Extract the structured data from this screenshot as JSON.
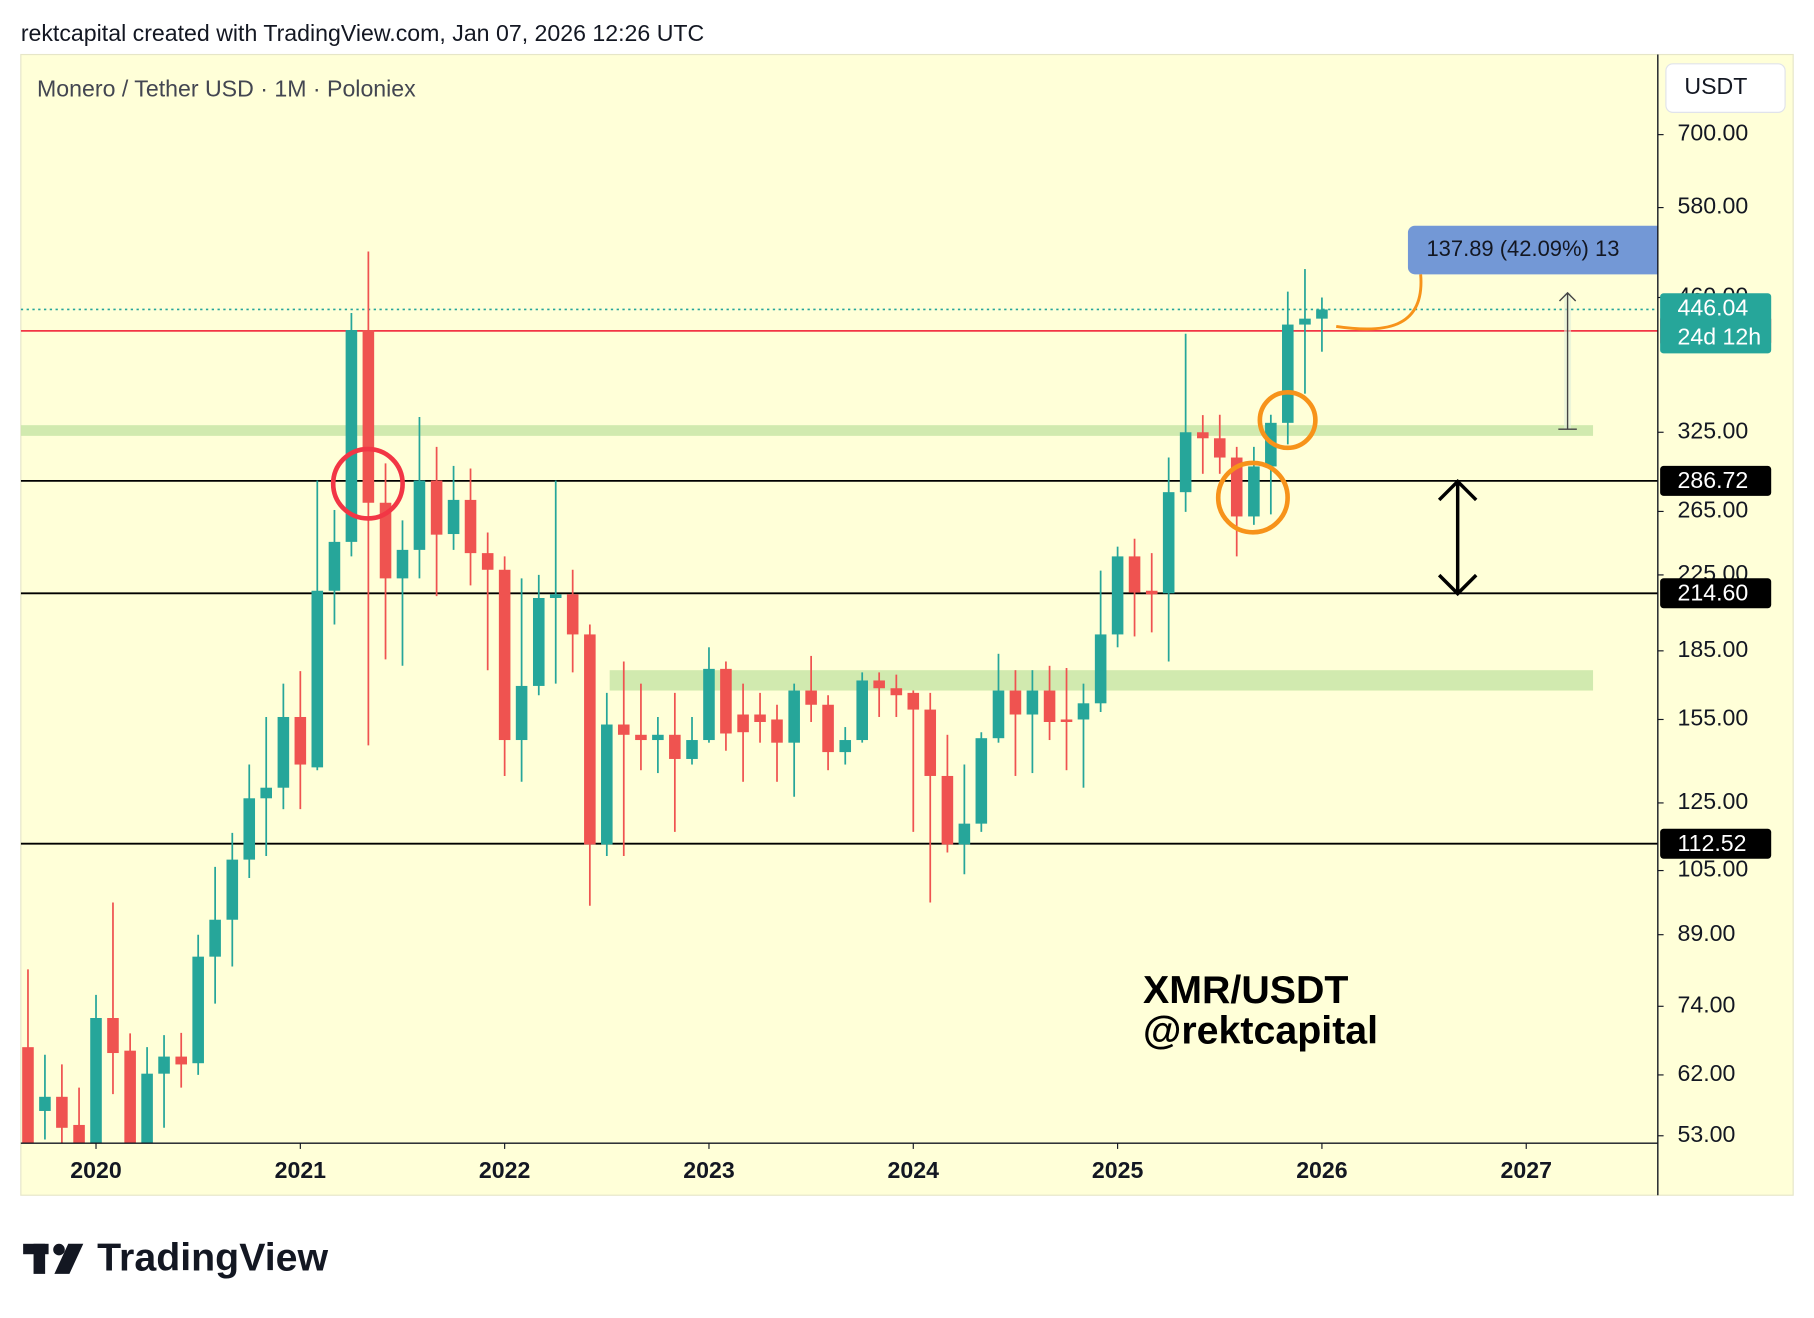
{
  "header": "rektcapital created with TradingView.com, Jan 07, 2026 12:26 UTC",
  "currency_button": "USDT",
  "watermark": [
    "XMR/USDT",
    "@rektcapital"
  ],
  "footer_brand": "TradingView",
  "chart_data": {
    "type": "candlestick",
    "title": "Monero / Tether USD · 1M · Poloniex",
    "log_scale": true,
    "up_color": "#26a69a",
    "down_color": "#ef5350",
    "x": [
      2019.667,
      2019.75,
      2019.833,
      2019.917,
      2020,
      2020.083,
      2020.167,
      2020.25,
      2020.333,
      2020.417,
      2020.5,
      2020.583,
      2020.667,
      2020.75,
      2020.833,
      2020.917,
      2021,
      2021.083,
      2021.167,
      2021.25,
      2021.333,
      2021.417,
      2021.5,
      2021.583,
      2021.667,
      2021.75,
      2021.833,
      2021.917,
      2022,
      2022.083,
      2022.167,
      2022.25,
      2022.333,
      2022.417,
      2022.5,
      2022.583,
      2022.667,
      2022.75,
      2022.833,
      2022.917,
      2023,
      2023.083,
      2023.167,
      2023.25,
      2023.333,
      2023.417,
      2023.5,
      2023.583,
      2023.667,
      2023.75,
      2023.833,
      2023.917,
      2024,
      2024.083,
      2024.167,
      2024.25,
      2024.333,
      2024.417,
      2024.5,
      2024.583,
      2024.667,
      2024.75,
      2024.833,
      2024.917,
      2025,
      2025.083,
      2025.167,
      2025.25,
      2025.333,
      2025.417,
      2025.5,
      2025.583,
      2025.667,
      2025.75,
      2025.833,
      2025.917,
      2026
    ],
    "open": [
      66.6,
      56.5,
      58.6,
      54.5,
      48,
      71.8,
      66,
      47,
      62.2,
      65,
      63.9,
      84.1,
      92.5,
      108,
      126.5,
      130,
      156,
      137,
      216,
      245,
      423,
      271,
      223,
      240,
      287,
      250,
      273,
      238,
      228,
      147,
      169,
      212,
      214,
      193,
      112.3,
      153,
      149,
      147,
      149,
      140,
      147,
      176.6,
      157,
      157,
      155,
      146,
      167,
      161,
      142.5,
      147,
      171.4,
      168,
      166,
      159,
      134,
      112.3,
      118.5,
      147.7,
      167,
      157,
      167,
      155,
      155,
      161.6,
      193,
      236,
      216,
      214.6,
      278.5,
      325,
      320,
      304.5,
      261.6,
      297.6,
      333,
      429,
      435.6
    ],
    "high": [
      81.4,
      65.3,
      63.7,
      60,
      76.2,
      96.7,
      69,
      66.6,
      68.7,
      69.1,
      89,
      106,
      115.7,
      138,
      156,
      170,
      175.6,
      287,
      266,
      442,
      518,
      300,
      259,
      338,
      313,
      298,
      296,
      251,
      236,
      223,
      225,
      287,
      228,
      198,
      166,
      180,
      170,
      156,
      166,
      156,
      186.7,
      180,
      170,
      166,
      161,
      170,
      182.6,
      165,
      152,
      175,
      175,
      174,
      167,
      166,
      149,
      138,
      150,
      183.6,
      176,
      176,
      178,
      177,
      170,
      227.5,
      242,
      247,
      238,
      304.5,
      419,
      339.7,
      340,
      313,
      313,
      340,
      467,
      495,
      460
    ],
    "low": [
      45,
      52.5,
      50,
      46,
      46,
      59,
      37,
      45,
      54.1,
      60,
      62,
      74.5,
      82,
      103,
      109,
      123,
      123,
      136,
      198,
      236,
      145,
      181,
      178,
      223,
      213,
      240,
      219,
      176,
      134,
      132,
      165,
      170,
      175,
      95.9,
      109,
      109,
      136,
      135,
      116,
      138,
      146,
      143,
      132,
      146,
      132,
      127,
      154,
      136,
      138,
      146,
      156,
      156,
      116,
      96.7,
      110,
      104,
      116,
      146,
      134,
      135,
      147,
      136,
      130,
      158,
      186.7,
      192,
      194,
      180,
      264.7,
      292,
      292,
      236,
      256,
      263,
      315,
      359,
      400
    ],
    "close": [
      50,
      58.6,
      54.1,
      48,
      71.8,
      65.6,
      47,
      62.2,
      65,
      63.7,
      84.1,
      92.5,
      108,
      126.5,
      130,
      156,
      138,
      216,
      245,
      423,
      271,
      223,
      240,
      287,
      249.6,
      273,
      238,
      228,
      147,
      169,
      212,
      214,
      193,
      112.3,
      153,
      149,
      147,
      149,
      140,
      147,
      176.6,
      149.5,
      150,
      154,
      146,
      167,
      161,
      142.5,
      147,
      171.4,
      168,
      165,
      159,
      134,
      112.3,
      118.5,
      147.7,
      167,
      157,
      167,
      154,
      154,
      161.6,
      193,
      236,
      215,
      214,
      278.5,
      325,
      320,
      304.5,
      261.6,
      297.6,
      333,
      429,
      435.6,
      446.04
    ],
    "xlim": [
      2019.632,
      2027.644
    ],
    "xticks": [
      2020,
      2021,
      2022,
      2023,
      2024,
      2025,
      2026,
      2027
    ],
    "ylim": [
      52,
      858
    ],
    "yticks": [
      {
        "value": 700,
        "label": "700.00"
      },
      {
        "value": 580,
        "label": "580.00"
      },
      {
        "value": 460,
        "label": "460.00"
      },
      {
        "value": 325,
        "label": "325.00"
      },
      {
        "value": 265,
        "label": "265.00"
      },
      {
        "value": 225,
        "label": "225.00"
      },
      {
        "value": 185,
        "label": "185.00"
      },
      {
        "value": 155,
        "label": "155.00"
      },
      {
        "value": 125,
        "label": "125.00"
      },
      {
        "value": 105,
        "label": "105.00"
      },
      {
        "value": 89,
        "label": "89.00"
      },
      {
        "value": 74,
        "label": "74.00"
      },
      {
        "value": 62,
        "label": "62.00"
      },
      {
        "value": 53,
        "label": "53.00"
      }
    ],
    "price_lines": [
      {
        "value": 422.09,
        "color": "#f23645"
      },
      {
        "value": 286.72,
        "color": "#000000"
      },
      {
        "value": 214.6,
        "label": "214.60",
        "color": "#000000"
      },
      {
        "value": 112.52,
        "color": "#000000"
      }
    ],
    "last_price": {
      "value": 446.04,
      "countdown": "24d 12h"
    },
    "zones": [
      {
        "low": 322,
        "high": 331
      },
      {
        "low": 167,
        "high": 176
      }
    ],
    "zone_color": "#c9e6a8",
    "measure": {
      "from": 327.6,
      "to": 465.5,
      "label": "137.89 (42.09%) 13"
    }
  }
}
